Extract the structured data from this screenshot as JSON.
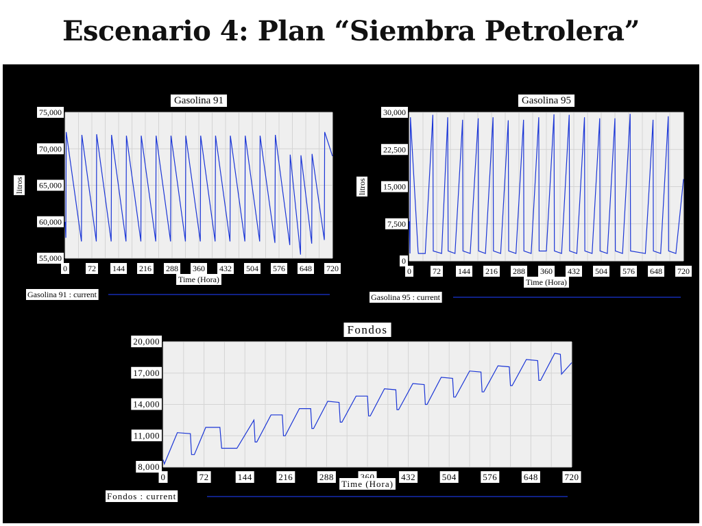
{
  "slide": {
    "title": "Escenario 4: Plan “Siembra Petrolera”"
  },
  "colors": {
    "panel_background": "#000000",
    "plot_background": "#efefef",
    "grid": "#d4d4d4",
    "line": "#1a35d6",
    "label_box": "#ffffff"
  },
  "chart_data": [
    {
      "id": "gasolina91",
      "type": "line",
      "title": "Gasolina 91",
      "xlabel": "Time (Hora)",
      "ylabel": "litros",
      "xlim": [
        0,
        720
      ],
      "ylim": [
        55000,
        75000
      ],
      "xticks": [
        "0",
        "72",
        "144",
        "216",
        "288",
        "360",
        "432",
        "504",
        "576",
        "648",
        "720"
      ],
      "yticks": [
        "75,000",
        "70,000",
        "65,000",
        "60,000",
        "55,000"
      ],
      "grid": true,
      "legend": "bottom",
      "series": [
        {
          "name": "Gasolina 91 : current",
          "x": [
            0,
            2,
            3,
            44,
            45,
            84,
            85,
            124,
            125,
            164,
            165,
            204,
            205,
            244,
            245,
            284,
            285,
            324,
            325,
            364,
            365,
            404,
            405,
            444,
            445,
            484,
            485,
            524,
            525,
            565,
            566,
            605,
            606,
            634,
            635,
            664,
            665,
            698,
            699,
            720
          ],
          "y": [
            60000,
            57800,
            72300,
            57300,
            71900,
            57300,
            72000,
            57300,
            71900,
            57300,
            71800,
            57300,
            71800,
            57300,
            71800,
            57300,
            71800,
            57300,
            71800,
            57300,
            71800,
            57300,
            71800,
            57300,
            71800,
            57300,
            71800,
            57300,
            71800,
            57100,
            71900,
            56800,
            69200,
            55500,
            69100,
            57000,
            69300,
            57500,
            72300,
            69000
          ]
        }
      ]
    },
    {
      "id": "gasolina95",
      "type": "line",
      "title": "Gasolina 95",
      "xlabel": "Time (Hora)",
      "ylabel": "litros",
      "xlim": [
        0,
        720
      ],
      "ylim": [
        0,
        30000
      ],
      "xticks": [
        "0",
        "72",
        "144",
        "216",
        "288",
        "360",
        "432",
        "504",
        "576",
        "648",
        "720"
      ],
      "yticks": [
        "30,000",
        "22,500",
        "15,000",
        "7,500",
        "0"
      ],
      "grid": true,
      "legend": "bottom",
      "series": [
        {
          "name": "Gasolina 95 : current",
          "x": [
            0,
            2,
            3,
            23,
            24,
            42,
            62,
            63,
            85,
            101,
            102,
            120,
            140,
            141,
            160,
            181,
            182,
            200,
            220,
            221,
            240,
            260,
            261,
            280,
            300,
            301,
            320,
            340,
            341,
            360,
            380,
            381,
            400,
            420,
            421,
            440,
            460,
            461,
            480,
            500,
            501,
            520,
            540,
            541,
            560,
            580,
            581,
            620,
            640,
            641,
            660,
            680,
            681,
            700,
            720
          ],
          "y": [
            8000,
            1500,
            29000,
            2000,
            1500,
            1500,
            29500,
            2000,
            1500,
            29000,
            2000,
            1500,
            28500,
            2000,
            1500,
            28800,
            2000,
            1500,
            29000,
            2000,
            1500,
            28400,
            2000,
            1500,
            28500,
            2000,
            1500,
            29000,
            2000,
            2000,
            29600,
            2000,
            1500,
            29500,
            2000,
            1500,
            29000,
            2000,
            1500,
            28800,
            2000,
            1500,
            28800,
            2000,
            1500,
            29700,
            2000,
            1500,
            28500,
            2000,
            1500,
            29200,
            2000,
            1500,
            16500
          ]
        }
      ]
    },
    {
      "id": "fondos",
      "type": "line",
      "title": "Fondos",
      "xlabel": "Time (Hora)",
      "ylabel": "",
      "xlim": [
        0,
        720
      ],
      "ylim": [
        8000,
        20000
      ],
      "xticks": [
        "0",
        "72",
        "144",
        "216",
        "288",
        "360",
        "432",
        "504",
        "576",
        "648",
        "720"
      ],
      "yticks": [
        "20,000",
        "17,000",
        "14,000",
        "11,000",
        "8,000"
      ],
      "grid": true,
      "legend": "bottom",
      "series": [
        {
          "name": "Fondos : current",
          "x": [
            0,
            2,
            25,
            48,
            50,
            52,
            55,
            75,
            98,
            100,
            103,
            122,
            120,
            130,
            160,
            162,
            165,
            190,
            210,
            212,
            215,
            240,
            260,
            262,
            265,
            290,
            310,
            312,
            315,
            340,
            360,
            362,
            365,
            390,
            410,
            412,
            415,
            440,
            460,
            462,
            465,
            490,
            510,
            512,
            515,
            540,
            560,
            562,
            565,
            590,
            610,
            612,
            615,
            640,
            660,
            662,
            665,
            690,
            700,
            702,
            720
          ],
          "y": [
            8700,
            8300,
            11300,
            11200,
            9200,
            9200,
            9200,
            11800,
            11800,
            11800,
            9800,
            9800,
            9800,
            9800,
            12500,
            10400,
            10400,
            13000,
            13000,
            11000,
            11000,
            13600,
            13600,
            11700,
            11700,
            14300,
            14200,
            12300,
            12300,
            14800,
            14800,
            12900,
            12900,
            15500,
            15400,
            13500,
            13500,
            16000,
            15900,
            14000,
            14000,
            16600,
            16500,
            14700,
            14700,
            17200,
            17100,
            15200,
            15200,
            17700,
            17600,
            15800,
            15800,
            18300,
            18200,
            16300,
            16300,
            18900,
            18800,
            16900,
            18000
          ]
        }
      ]
    }
  ]
}
